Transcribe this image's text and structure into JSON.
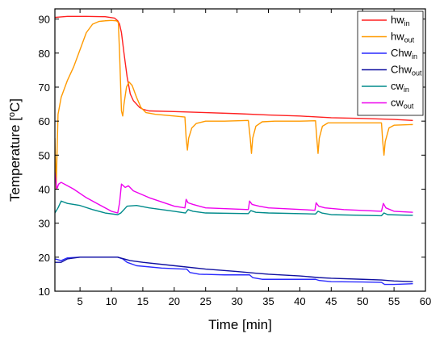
{
  "chart_data": {
    "type": "line",
    "xlabel": "Time [min]",
    "ylabel_main": "Temperature [",
    "ylabel_sup": "o",
    "ylabel_end": "C]",
    "xlim": [
      1,
      60
    ],
    "ylim": [
      10,
      93
    ],
    "xticks": [
      "5",
      "10",
      "15",
      "20",
      "25",
      "30",
      "35",
      "40",
      "45",
      "50",
      "55",
      "60"
    ],
    "xtick_values": [
      5,
      10,
      15,
      20,
      25,
      30,
      35,
      40,
      45,
      50,
      55,
      60
    ],
    "yticks": [
      "10",
      "20",
      "30",
      "40",
      "50",
      "60",
      "70",
      "80",
      "90"
    ],
    "ytick_values": [
      10,
      20,
      30,
      40,
      50,
      60,
      70,
      80,
      90
    ],
    "grid": false,
    "legend_position": "top-right",
    "series": [
      {
        "base": "hw",
        "sub": "in",
        "color": "#ff2020",
        "points": [
          [
            1,
            90.5
          ],
          [
            3,
            90.8
          ],
          [
            6,
            90.8
          ],
          [
            9,
            90.7
          ],
          [
            10.5,
            90.3
          ],
          [
            11,
            89.5
          ],
          [
            11.3,
            88.5
          ],
          [
            11.6,
            86
          ],
          [
            12,
            80
          ],
          [
            12.5,
            73
          ],
          [
            13,
            68
          ],
          [
            13.5,
            66
          ],
          [
            14,
            65
          ],
          [
            14.5,
            64
          ],
          [
            15,
            63.5
          ],
          [
            16,
            63
          ],
          [
            20,
            62.8
          ],
          [
            25,
            62.5
          ],
          [
            30,
            62.2
          ],
          [
            35,
            61.8
          ],
          [
            40,
            61.5
          ],
          [
            45,
            61
          ],
          [
            50,
            60.8
          ],
          [
            55,
            60.5
          ],
          [
            58,
            60.2
          ]
        ]
      },
      {
        "base": "hw",
        "sub": "out",
        "color": "#ff9a00",
        "points": [
          [
            1,
            55
          ],
          [
            1.2,
            40
          ],
          [
            1.5,
            62
          ],
          [
            2,
            67
          ],
          [
            3,
            72
          ],
          [
            4,
            76
          ],
          [
            5,
            81
          ],
          [
            6,
            86
          ],
          [
            7,
            88.5
          ],
          [
            8,
            89.3
          ],
          [
            9,
            89.5
          ],
          [
            10,
            89.6
          ],
          [
            10.8,
            89.5
          ],
          [
            11.1,
            89
          ],
          [
            11.3,
            80
          ],
          [
            11.6,
            63
          ],
          [
            11.8,
            61.5
          ],
          [
            12,
            65
          ],
          [
            12.4,
            70
          ],
          [
            12.8,
            71.5
          ],
          [
            13.3,
            70.5
          ],
          [
            14,
            67
          ],
          [
            14.7,
            64
          ],
          [
            15.5,
            62.5
          ],
          [
            17,
            62
          ],
          [
            20,
            61.5
          ],
          [
            21.7,
            61.2
          ],
          [
            21.9,
            55
          ],
          [
            22.1,
            51.5
          ],
          [
            22.3,
            55
          ],
          [
            22.8,
            58
          ],
          [
            23.5,
            59.3
          ],
          [
            25,
            60
          ],
          [
            28,
            60
          ],
          [
            31.8,
            60.2
          ],
          [
            32.1,
            55
          ],
          [
            32.3,
            50.5
          ],
          [
            32.5,
            55
          ],
          [
            33,
            58.5
          ],
          [
            34,
            59.8
          ],
          [
            36,
            60
          ],
          [
            40,
            60
          ],
          [
            42.5,
            60.1
          ],
          [
            42.7,
            55
          ],
          [
            42.9,
            50.5
          ],
          [
            43.1,
            55
          ],
          [
            43.6,
            58.5
          ],
          [
            44.5,
            59.5
          ],
          [
            47,
            59.5
          ],
          [
            53,
            59.5
          ],
          [
            53.2,
            54
          ],
          [
            53.4,
            50
          ],
          [
            53.6,
            54
          ],
          [
            54.2,
            58
          ],
          [
            55,
            58.8
          ],
          [
            58,
            59
          ]
        ]
      },
      {
        "base": "Chw",
        "sub": "in",
        "color": "#2a2aff",
        "points": [
          [
            1,
            19.5
          ],
          [
            2,
            19
          ],
          [
            3,
            19.8
          ],
          [
            5,
            20
          ],
          [
            8,
            20
          ],
          [
            11,
            20
          ],
          [
            11.8,
            19.5
          ],
          [
            12.5,
            18.5
          ],
          [
            14,
            17.5
          ],
          [
            18,
            16.8
          ],
          [
            21.5,
            16.5
          ],
          [
            22,
            16.5
          ],
          [
            22.5,
            15.5
          ],
          [
            24,
            15
          ],
          [
            28,
            14.8
          ],
          [
            32,
            14.8
          ],
          [
            32.5,
            14
          ],
          [
            34,
            13.5
          ],
          [
            38,
            13.5
          ],
          [
            42.5,
            13.5
          ],
          [
            43,
            13.2
          ],
          [
            45,
            12.8
          ],
          [
            50,
            12.7
          ],
          [
            53,
            12.6
          ],
          [
            53.5,
            12
          ],
          [
            55,
            12
          ],
          [
            58,
            12.2
          ]
        ]
      },
      {
        "base": "Chw",
        "sub": "out",
        "color": "#1010a0",
        "points": [
          [
            1,
            18.5
          ],
          [
            2,
            18.5
          ],
          [
            3,
            19.5
          ],
          [
            5,
            20
          ],
          [
            8,
            20
          ],
          [
            11,
            20
          ],
          [
            12,
            19.5
          ],
          [
            13,
            19
          ],
          [
            15,
            18.5
          ],
          [
            20,
            17.5
          ],
          [
            25,
            16.5
          ],
          [
            30,
            15.8
          ],
          [
            33,
            15.3
          ],
          [
            35,
            15
          ],
          [
            40,
            14.5
          ],
          [
            43,
            14
          ],
          [
            45,
            13.8
          ],
          [
            50,
            13.5
          ],
          [
            53,
            13.3
          ],
          [
            55,
            13
          ],
          [
            58,
            12.8
          ]
        ]
      },
      {
        "base": "cw",
        "sub": "in",
        "color": "#008b8b",
        "points": [
          [
            1,
            33
          ],
          [
            1.5,
            34.5
          ],
          [
            2,
            36.5
          ],
          [
            3,
            35.8
          ],
          [
            5,
            35.2
          ],
          [
            7,
            34
          ],
          [
            9,
            33
          ],
          [
            11,
            32.5
          ],
          [
            11.5,
            33
          ],
          [
            12.5,
            35
          ],
          [
            14,
            35.2
          ],
          [
            16,
            34.5
          ],
          [
            20,
            33.5
          ],
          [
            21.8,
            33
          ],
          [
            22.2,
            34
          ],
          [
            23,
            33.5
          ],
          [
            25,
            33
          ],
          [
            31.8,
            32.8
          ],
          [
            32.2,
            33.7
          ],
          [
            33,
            33.2
          ],
          [
            35,
            33
          ],
          [
            42.5,
            32.7
          ],
          [
            42.9,
            33.5
          ],
          [
            43.5,
            33
          ],
          [
            45,
            32.5
          ],
          [
            53,
            32.2
          ],
          [
            53.4,
            33
          ],
          [
            54,
            32.5
          ],
          [
            58,
            32.3
          ]
        ]
      },
      {
        "base": "cw",
        "sub": "out",
        "color": "#ee00ee",
        "points": [
          [
            1,
            45
          ],
          [
            1.3,
            40
          ],
          [
            1.6,
            41.5
          ],
          [
            2,
            42
          ],
          [
            3,
            41
          ],
          [
            4,
            40
          ],
          [
            6,
            37.5
          ],
          [
            8,
            35.5
          ],
          [
            10,
            33.5
          ],
          [
            11,
            33
          ],
          [
            11.3,
            36
          ],
          [
            11.6,
            41.5
          ],
          [
            12.2,
            40.5
          ],
          [
            12.7,
            41
          ],
          [
            13.5,
            39.5
          ],
          [
            16,
            37.5
          ],
          [
            20,
            35
          ],
          [
            21.7,
            34.5
          ],
          [
            21.9,
            37
          ],
          [
            22.2,
            36
          ],
          [
            23,
            35.5
          ],
          [
            25,
            34.5
          ],
          [
            31.8,
            34
          ],
          [
            32,
            36.5
          ],
          [
            32.4,
            35.5
          ],
          [
            33.5,
            35
          ],
          [
            35,
            34.5
          ],
          [
            42.4,
            33.8
          ],
          [
            42.6,
            36
          ],
          [
            43,
            35
          ],
          [
            44,
            34.5
          ],
          [
            47,
            34
          ],
          [
            53,
            33.5
          ],
          [
            53.3,
            35.8
          ],
          [
            53.7,
            34.5
          ],
          [
            55,
            33.5
          ],
          [
            58,
            33.2
          ]
        ]
      }
    ]
  }
}
